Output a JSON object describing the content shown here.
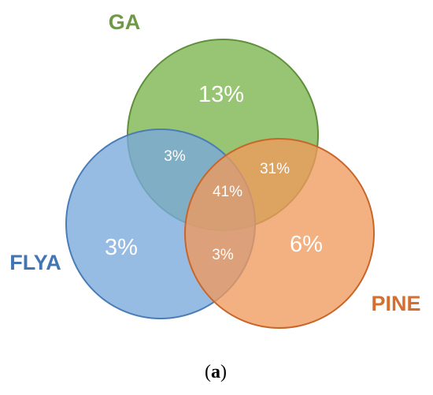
{
  "sets": [
    {
      "id": "ga",
      "label": "GA",
      "fill": "#8cbf64",
      "stroke": "#5e8f3a",
      "label_color": "#6e9a47"
    },
    {
      "id": "flya",
      "label": "FLYA",
      "fill": "#7aa9dc",
      "stroke": "#4a7cb5",
      "label_color": "#4375b4"
    },
    {
      "id": "pine",
      "label": "PINE",
      "fill": "#f09a5c",
      "stroke": "#c8662a",
      "label_color": "#d46f2f"
    }
  ],
  "regions": {
    "ga_only": "13%",
    "flya_only": "3%",
    "pine_only": "6%",
    "ga_flya": "3%",
    "ga_pine": "31%",
    "flya_pine": "3%",
    "all": "41%"
  },
  "caption": {
    "open": "(",
    "letter": "a",
    "close": ")"
  }
}
